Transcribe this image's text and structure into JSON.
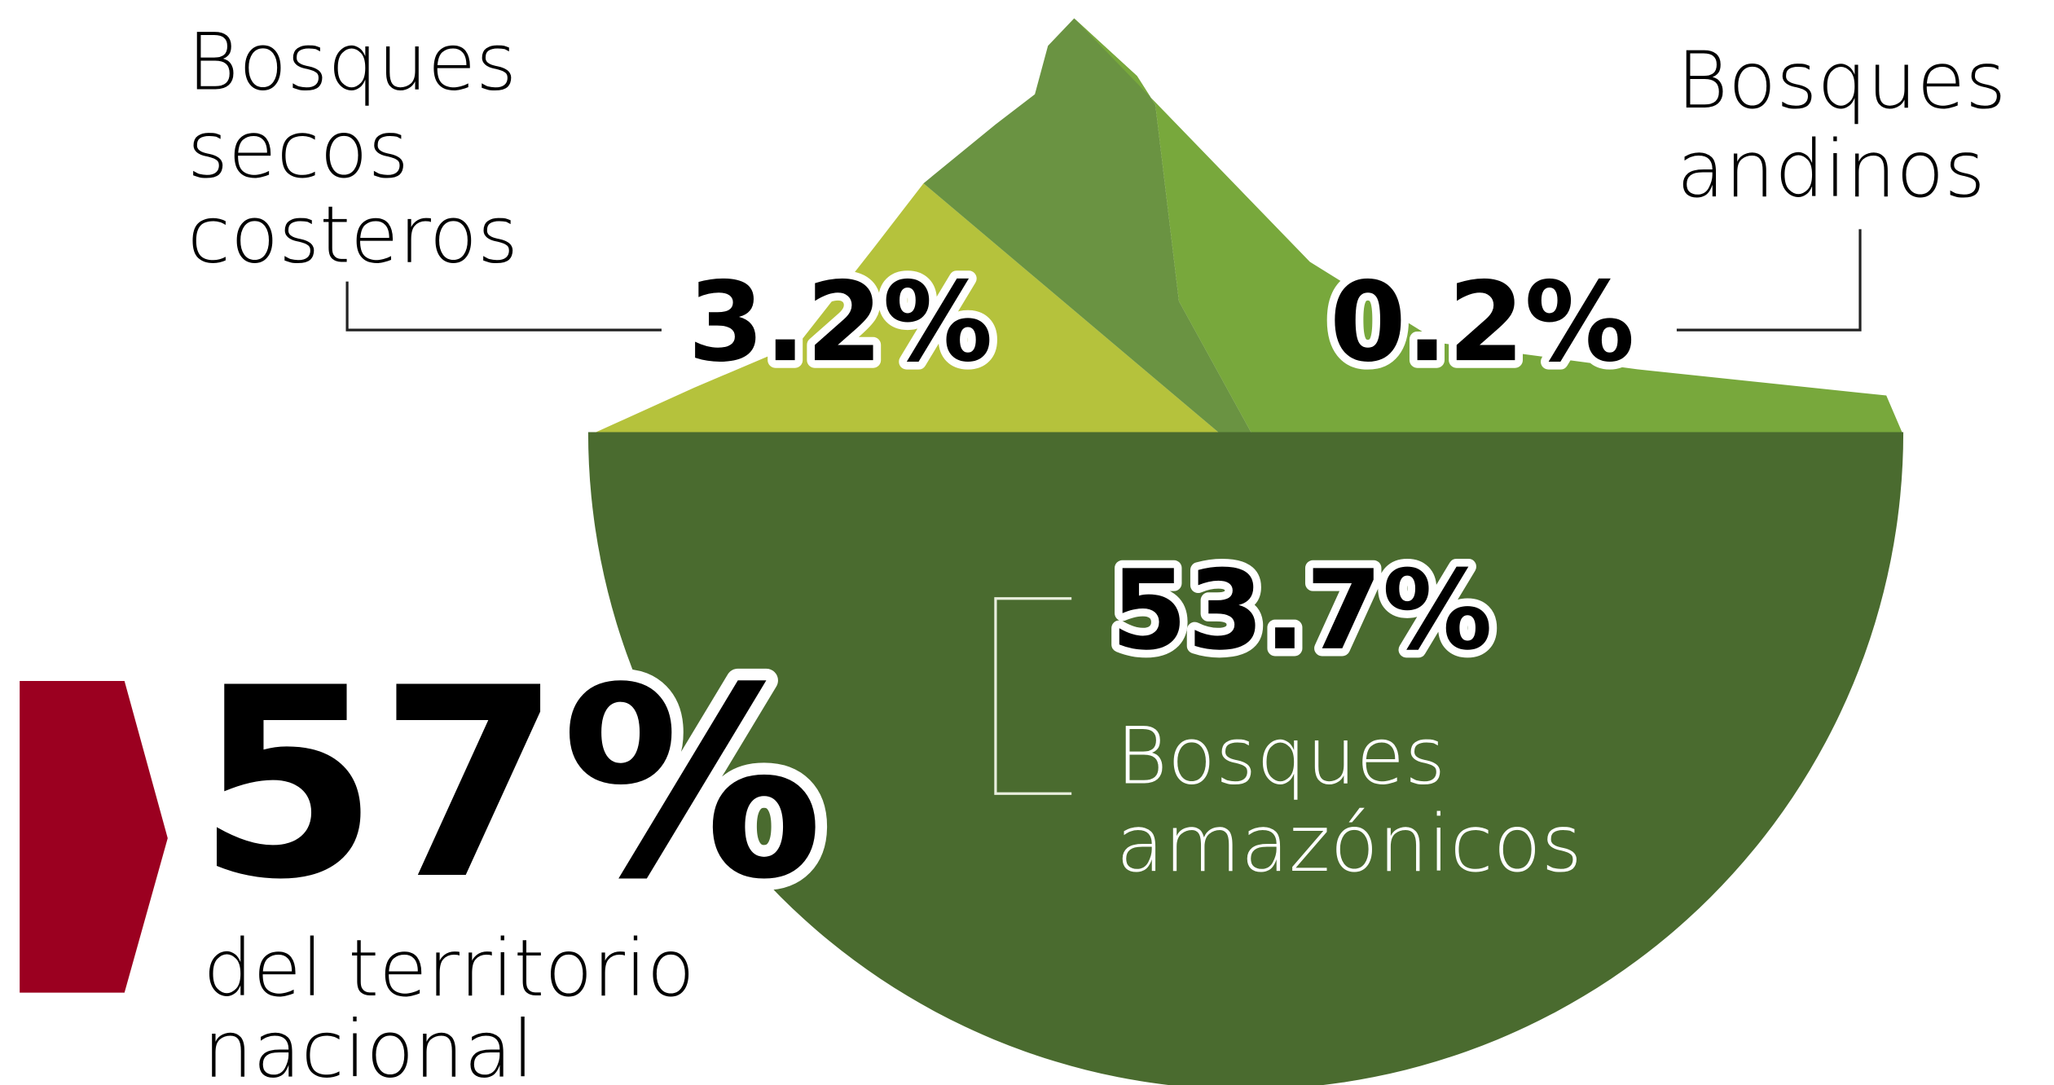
{
  "left": {
    "label_lines": [
      "Bosques",
      "secos",
      "costeros"
    ],
    "value": "3.2%"
  },
  "right": {
    "label_lines": [
      "Bosques",
      "andinos"
    ],
    "value": "0.2%"
  },
  "main": {
    "value": "53.7%",
    "label_lines": [
      "Bosques",
      "amazónicos"
    ]
  },
  "total": {
    "value": "57%",
    "label_lines": [
      "del territorio",
      "nacional"
    ]
  }
}
